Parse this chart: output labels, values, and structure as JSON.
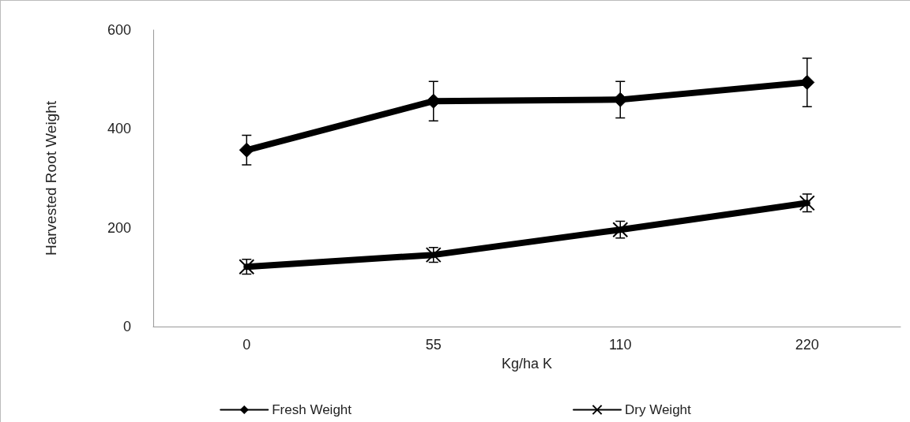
{
  "chart_data": {
    "type": "line",
    "xlabel": "Kg/ha K",
    "ylabel": "Harvested Root Weight",
    "categories": [
      "0",
      "55",
      "110",
      "220"
    ],
    "series": [
      {
        "name": "Fresh Weight",
        "color": "#000000",
        "marker": "diamond",
        "values": [
          357,
          456,
          459,
          494
        ],
        "errors": [
          30,
          40,
          37,
          49
        ]
      },
      {
        "name": "Dry Weight",
        "color": "#000000",
        "marker": "cross",
        "values": [
          121,
          145,
          196,
          250
        ],
        "errors": [
          15,
          15,
          17,
          18
        ]
      }
    ],
    "ylim": [
      0,
      600
    ],
    "yticks": [
      0,
      200,
      400,
      600
    ],
    "grid": false,
    "legend": "bottom"
  }
}
